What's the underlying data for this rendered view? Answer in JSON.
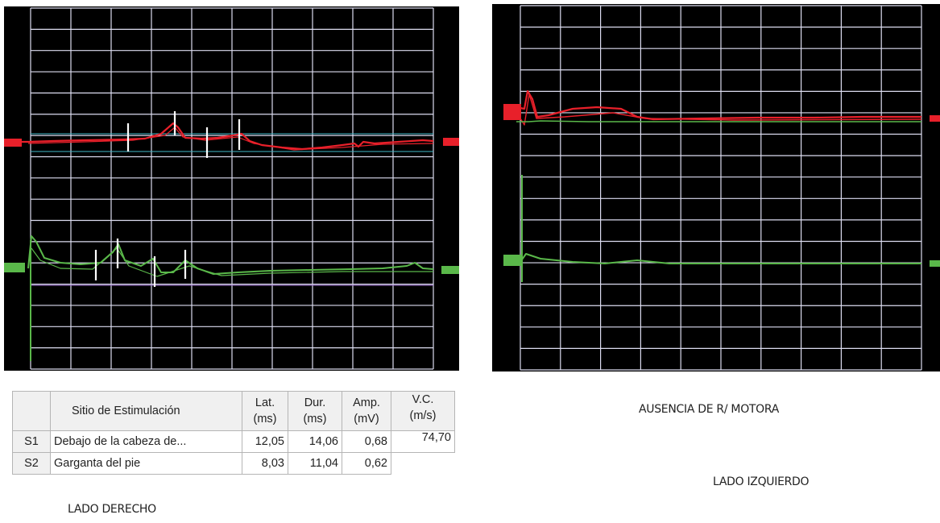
{
  "left_panel": {
    "grid": {
      "cols": 10,
      "rows": 17
    },
    "traces": [
      {
        "name": "S1",
        "color": "#e8202a",
        "baseline_color": "#3fb8c8"
      },
      {
        "name": "S2",
        "color": "#5ab84a",
        "baseline_color": "#a070d0"
      }
    ]
  },
  "right_panel": {
    "grid": {
      "cols": 10,
      "rows": 17
    },
    "traces": [
      {
        "name": "S1",
        "color": "#e8202a"
      },
      {
        "name": "S2",
        "color": "#5ab84a"
      }
    ]
  },
  "table": {
    "headers": {
      "site": "Sitio de Estimulación",
      "lat_1": "Lat.",
      "lat_2": "(ms)",
      "dur_1": "Dur.",
      "dur_2": "(ms)",
      "amp_1": "Amp.",
      "amp_2": "(mV)",
      "vc_1": "V.C.",
      "vc_2": "(m/s)"
    },
    "rows": [
      {
        "id": "S1",
        "site": "Debajo de la cabeza de...",
        "lat": "12,05",
        "dur": "14,06",
        "amp": "0,68",
        "vc": "74,70"
      },
      {
        "id": "S2",
        "site": "Garganta del pie",
        "lat": "8,03",
        "dur": "11,04",
        "amp": "0,62"
      }
    ]
  },
  "captions": {
    "left": "LADO DERECHO",
    "right": "LADO IZQUIERDO",
    "right_note": "AUSENCIA DE R/ MOTORA"
  }
}
